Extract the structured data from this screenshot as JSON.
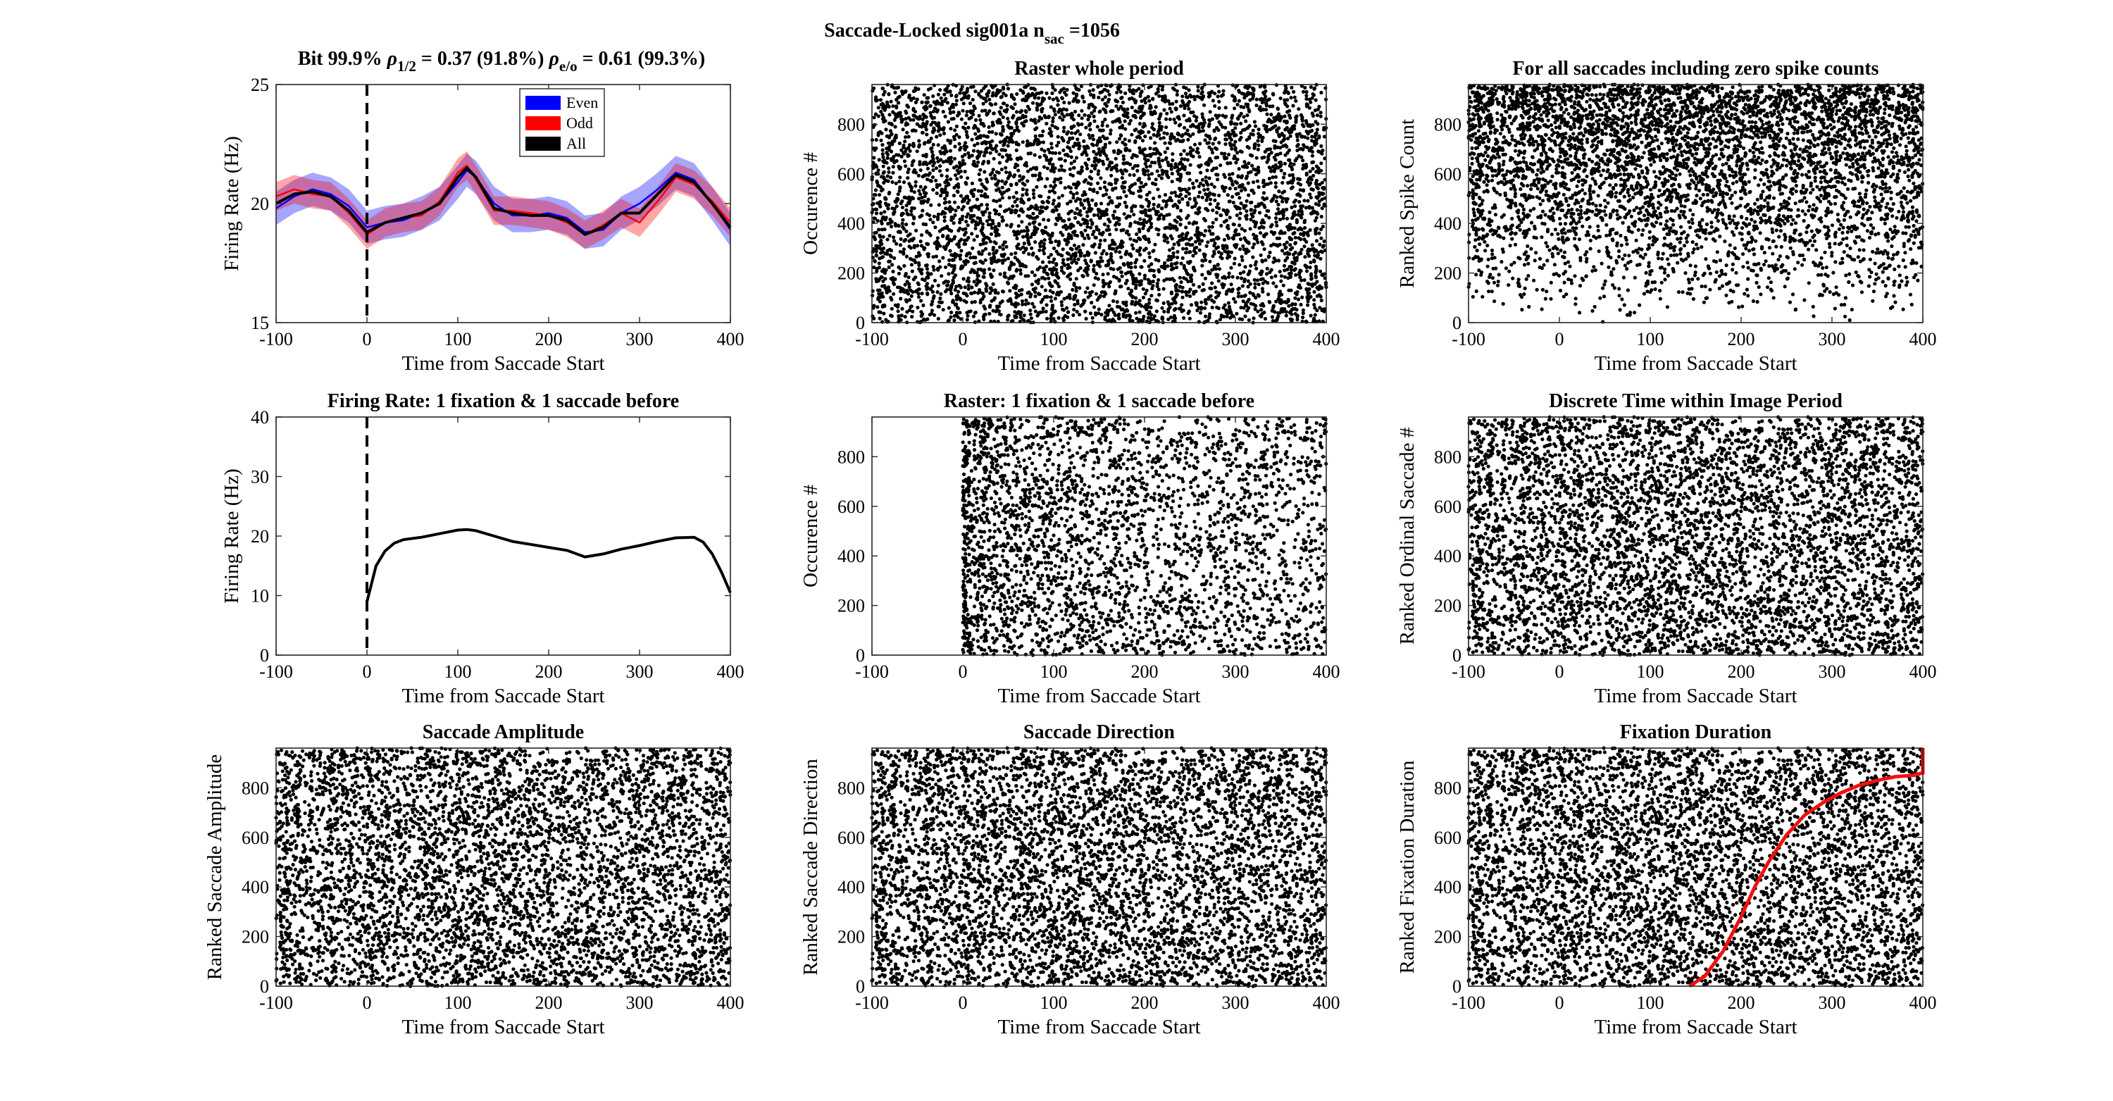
{
  "suptitle": {
    "main": "Saccade-Locked sig001a   n",
    "sub": "sac",
    "tail": " =1056"
  },
  "fr_title": {
    "a": "Bit 99.9% ",
    "rho1": "ρ",
    "sub1": "1/2",
    "b": " = 0.37 (91.8%) ",
    "rho2": "ρ",
    "sub2": "e/o",
    "c": " = 0.61 (99.3%)"
  },
  "colors": {
    "even": "#0000ff",
    "odd": "#ff0000",
    "all": "#000000",
    "fixation_curve": "#ee1111",
    "markers": "#000000"
  },
  "chart_data": [
    {
      "id": "p1",
      "type": "line",
      "xlabel": "Time from Saccade Start",
      "ylabel": "Firing Rate (Hz)",
      "xlim": [
        -100,
        400
      ],
      "ylim": [
        15,
        25
      ],
      "xticks": [
        -100,
        0,
        100,
        200,
        300,
        400
      ],
      "yticks": [
        15,
        20,
        25
      ],
      "event_line_x": 0,
      "legend": {
        "placement": "top-center",
        "entries": [
          "Even",
          "Odd",
          "All"
        ]
      },
      "series": [
        {
          "name": "Even",
          "x": [
            -100,
            -80,
            -60,
            -40,
            -20,
            0,
            20,
            40,
            60,
            80,
            100,
            110,
            120,
            140,
            160,
            180,
            200,
            220,
            240,
            260,
            280,
            300,
            320,
            340,
            360,
            380,
            400
          ],
          "values": [
            19.8,
            20.3,
            20.6,
            20.4,
            19.9,
            19.0,
            19.2,
            19.3,
            19.6,
            20.0,
            20.9,
            21.4,
            21.1,
            20.0,
            19.5,
            19.5,
            19.6,
            19.4,
            18.8,
            18.9,
            19.6,
            20.0,
            20.6,
            21.3,
            21.0,
            20.0,
            18.9
          ]
        },
        {
          "name": "Odd",
          "x": [
            -100,
            -80,
            -60,
            -40,
            -20,
            0,
            20,
            40,
            60,
            80,
            100,
            110,
            120,
            140,
            160,
            180,
            200,
            220,
            240,
            260,
            280,
            300,
            320,
            340,
            360,
            380,
            400
          ],
          "values": [
            20.3,
            20.6,
            20.4,
            20.3,
            19.6,
            18.7,
            19.2,
            19.4,
            19.5,
            20.1,
            21.3,
            21.6,
            21.0,
            19.7,
            19.7,
            19.6,
            19.5,
            19.2,
            18.7,
            19.1,
            19.6,
            19.2,
            20.1,
            21.1,
            20.8,
            20.1,
            19.2
          ]
        },
        {
          "name": "All",
          "x": [
            -100,
            -80,
            -60,
            -40,
            -20,
            0,
            20,
            40,
            60,
            80,
            100,
            110,
            120,
            140,
            160,
            180,
            200,
            220,
            240,
            260,
            280,
            300,
            320,
            340,
            360,
            380,
            400
          ],
          "values": [
            20.0,
            20.4,
            20.5,
            20.3,
            19.7,
            18.8,
            19.2,
            19.4,
            19.6,
            20.0,
            21.1,
            21.5,
            21.1,
            19.8,
            19.6,
            19.5,
            19.5,
            19.3,
            18.7,
            19.0,
            19.6,
            19.6,
            20.4,
            21.2,
            20.9,
            20.0,
            19.0
          ]
        }
      ],
      "band_halfwidth": {
        "Even": 0.7,
        "Odd": 0.6
      }
    },
    {
      "id": "p2",
      "type": "scatter",
      "title": "Raster whole period",
      "xlabel": "Time from Saccade Start",
      "ylabel": "Occurence #",
      "xlim": [
        -100,
        400
      ],
      "ylim": [
        0,
        960
      ],
      "xticks": [
        -100,
        0,
        100,
        200,
        300,
        400
      ],
      "yticks": [
        0,
        200,
        400,
        600,
        800
      ],
      "n_points": 5200,
      "density": "uniform"
    },
    {
      "id": "p3",
      "type": "scatter",
      "title": "For all saccades including zero spike counts",
      "xlabel": "Time from Saccade Start",
      "ylabel": "Ranked Spike Count",
      "xlim": [
        -100,
        400
      ],
      "ylim": [
        0,
        960
      ],
      "xticks": [
        -100,
        0,
        100,
        200,
        300,
        400
      ],
      "yticks": [
        0,
        200,
        400,
        600,
        800
      ],
      "n_points": 5200,
      "density": "increasing_with_rank"
    },
    {
      "id": "p4",
      "type": "line",
      "title": "Firing Rate: 1 fixation & 1 saccade before",
      "xlabel": "Time from Saccade Start",
      "ylabel": "Firing Rate (Hz)",
      "xlim": [
        -100,
        400
      ],
      "ylim": [
        0,
        40
      ],
      "xticks": [
        -100,
        0,
        100,
        200,
        300,
        400
      ],
      "yticks": [
        0,
        10,
        20,
        30,
        40
      ],
      "event_line_x": 0,
      "series": [
        {
          "name": "All",
          "x": [
            0,
            5,
            10,
            20,
            30,
            40,
            60,
            80,
            100,
            110,
            120,
            140,
            160,
            180,
            200,
            220,
            240,
            260,
            280,
            300,
            320,
            340,
            360,
            370,
            380,
            390,
            400
          ],
          "values": [
            9,
            12,
            15,
            17.5,
            18.8,
            19.4,
            19.8,
            20.4,
            21.0,
            21.1,
            20.9,
            20.0,
            19.1,
            18.6,
            18.1,
            17.6,
            16.5,
            17.0,
            17.8,
            18.4,
            19.1,
            19.7,
            19.8,
            19.0,
            17.0,
            14.0,
            10.5
          ]
        }
      ]
    },
    {
      "id": "p5",
      "type": "scatter",
      "title": "Raster: 1 fixation & 1 saccade before",
      "xlabel": "Time from Saccade Start",
      "ylabel": "Occurence #",
      "xlim": [
        -100,
        400
      ],
      "ylim": [
        0,
        960
      ],
      "xticks": [
        -100,
        0,
        100,
        200,
        300,
        400
      ],
      "yticks": [
        0,
        200,
        400,
        600,
        800
      ],
      "n_points": 3000,
      "density": "starts_at_zero_decaying"
    },
    {
      "id": "p6",
      "type": "scatter",
      "title": "Discrete Time within Image Period",
      "xlabel": "Time from Saccade Start",
      "ylabel": "Ranked Ordinal Saccade #",
      "xlim": [
        -100,
        400
      ],
      "ylim": [
        0,
        960
      ],
      "xticks": [
        -100,
        0,
        100,
        200,
        300,
        400
      ],
      "yticks": [
        0,
        200,
        400,
        600,
        800
      ],
      "n_points": 5200,
      "density": "uniform"
    },
    {
      "id": "p7",
      "type": "scatter",
      "title": "Saccade Amplitude",
      "xlabel": "Time from Saccade Start",
      "ylabel": "Ranked Saccade Amplitude",
      "xlim": [
        -100,
        400
      ],
      "ylim": [
        0,
        960
      ],
      "xticks": [
        -100,
        0,
        100,
        200,
        300,
        400
      ],
      "yticks": [
        0,
        200,
        400,
        600,
        800
      ],
      "n_points": 5200,
      "density": "uniform"
    },
    {
      "id": "p8",
      "type": "scatter",
      "title": "Saccade Direction",
      "xlabel": "Time from Saccade Start",
      "ylabel": "Ranked Saccade Direction",
      "xlim": [
        -100,
        400
      ],
      "ylim": [
        0,
        960
      ],
      "xticks": [
        -100,
        0,
        100,
        200,
        300,
        400
      ],
      "yticks": [
        0,
        200,
        400,
        600,
        800
      ],
      "n_points": 5200,
      "density": "uniform"
    },
    {
      "id": "p9",
      "type": "scatter",
      "title": "Fixation Duration",
      "xlabel": "Time from Saccade Start",
      "ylabel": "Ranked Fixation Duration",
      "xlim": [
        -100,
        400
      ],
      "ylim": [
        0,
        960
      ],
      "xticks": [
        -100,
        0,
        100,
        200,
        300,
        400
      ],
      "yticks": [
        0,
        200,
        400,
        600,
        800
      ],
      "n_points": 5200,
      "density": "uniform",
      "overlay_line": {
        "name": "fixation duration",
        "x": [
          143,
          160,
          180,
          200,
          215,
          230,
          250,
          270,
          290,
          310,
          330,
          350,
          370,
          390,
          400,
          400
        ],
        "values": [
          0,
          40,
          140,
          280,
          400,
          500,
          610,
          690,
          740,
          780,
          810,
          830,
          845,
          850,
          860,
          960
        ]
      }
    }
  ]
}
